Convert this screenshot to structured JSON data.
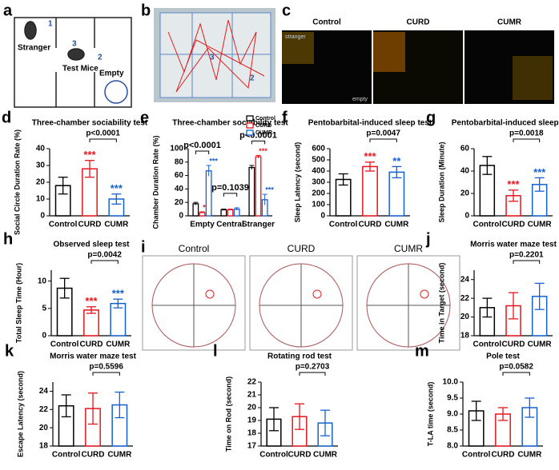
{
  "panels": {
    "a": {
      "label": "a",
      "stranger": "Stranger",
      "test_mice": "Test Mice",
      "empty": "Empty",
      "chamber_1": "1",
      "chamber_2": "2",
      "chamber_3": "3"
    },
    "b": {
      "label": "b",
      "chamber_3": "3",
      "chamber_2": "2"
    },
    "c": {
      "label": "c",
      "groups": [
        "Control",
        "CURD",
        "CUMR"
      ],
      "stranger": "stranger",
      "empty": "empty"
    },
    "i": {
      "label": "i",
      "groups": [
        "Control",
        "CURD",
        "CUMR"
      ]
    }
  },
  "chart_data": [
    {
      "type": "bar",
      "label": "d",
      "title": "Three-chamber sociability test",
      "y_label": "Social Circle Duration Rate (%)",
      "categories": [
        "Control",
        "CURD",
        "CUMR"
      ],
      "values": [
        18,
        28,
        10
      ],
      "errors": [
        5,
        5,
        3
      ],
      "colors": [
        "#000000",
        "#e8141c",
        "#1560d0"
      ],
      "stars": [
        null,
        "***",
        "***"
      ],
      "comparison": {
        "label": "p<0.0001",
        "from": 1,
        "to": 2
      },
      "ylim": [
        0,
        40
      ],
      "yticks": [
        0,
        10,
        20,
        30,
        40
      ]
    },
    {
      "type": "grouped_bar",
      "label": "e",
      "title": "Three-chamber sociability test",
      "y_label": "Chamber Duration Rate (%)",
      "categories": [
        "Empty",
        "Central",
        "Stranger"
      ],
      "series": [
        {
          "name": "Control",
          "color": "#000000",
          "values": [
            18,
            9,
            72
          ],
          "errors": [
            2,
            1,
            3
          ],
          "stars": [
            null,
            null,
            null
          ]
        },
        {
          "name": "CURD",
          "color": "#e8141c",
          "values": [
            5,
            9,
            88
          ],
          "errors": [
            1,
            1,
            2
          ],
          "stars": [
            "***",
            null,
            "***"
          ]
        },
        {
          "name": "CUMR",
          "color": "#1560d0",
          "values": [
            67,
            10,
            24
          ],
          "errors": [
            8,
            2,
            8
          ],
          "stars": [
            "***",
            null,
            "***"
          ]
        }
      ],
      "comparisons": [
        {
          "label": "p<0.0001",
          "category": 0
        },
        {
          "label": "p=0.1039",
          "category": 1
        },
        {
          "label": "p<0.0001",
          "category": 2
        }
      ],
      "legend": "upper right",
      "ylim": [
        0,
        100
      ],
      "yticks": [
        0,
        20,
        40,
        60,
        80,
        100
      ]
    },
    {
      "type": "bar",
      "label": "f",
      "title": "Pentobarbital-induced sleep test",
      "y_label": "Sleep Latency (second)",
      "categories": [
        "Control",
        "CURD",
        "CUMR"
      ],
      "values": [
        325,
        440,
        390
      ],
      "errors": [
        50,
        40,
        50
      ],
      "colors": [
        "#000000",
        "#e8141c",
        "#1560d0"
      ],
      "stars": [
        null,
        "***",
        "**"
      ],
      "comparison": {
        "label": "p=0.0047",
        "from": 1,
        "to": 2
      },
      "ylim": [
        0,
        600
      ],
      "yticks": [
        0,
        100,
        200,
        300,
        400,
        500,
        600
      ]
    },
    {
      "type": "bar",
      "label": "g",
      "title": "Pentobarbital-induced sleep test",
      "y_label": "Sleep Duration (Minute)",
      "categories": [
        "Control",
        "CURD",
        "CUMR"
      ],
      "values": [
        45,
        18,
        28
      ],
      "errors": [
        8,
        5,
        6
      ],
      "colors": [
        "#000000",
        "#e8141c",
        "#1560d0"
      ],
      "stars": [
        null,
        "***",
        "***"
      ],
      "comparison": {
        "label": "p=0.0018",
        "from": 1,
        "to": 2
      },
      "ylim": [
        0,
        60
      ],
      "yticks": [
        0,
        20,
        40,
        60
      ]
    },
    {
      "type": "bar",
      "label": "h",
      "title": "Observed sleep test",
      "y_label": "Total Sleep Time (Hour)",
      "categories": [
        "Control",
        "CURD",
        "CUMR"
      ],
      "values": [
        8.7,
        4.7,
        5.9
      ],
      "errors": [
        1.8,
        0.6,
        0.8
      ],
      "colors": [
        "#000000",
        "#e8141c",
        "#1560d0"
      ],
      "stars": [
        null,
        "***",
        "***"
      ],
      "comparison": {
        "label": "p=0.0042",
        "from": 1,
        "to": 2
      },
      "ylim": [
        0,
        12
      ],
      "yticks": [
        0,
        5,
        10
      ]
    },
    {
      "type": "bar",
      "label": "j",
      "title": "Morris water maze test",
      "y_label": "Time in Target (second)",
      "categories": [
        "Control",
        "CURD",
        "CUMR"
      ],
      "values": [
        21,
        21.2,
        22.2
      ],
      "errors": [
        1,
        1.4,
        1.4
      ],
      "colors": [
        "#000000",
        "#e8141c",
        "#1560d0"
      ],
      "stars": [
        null,
        null,
        null
      ],
      "comparison": {
        "label": "p=0.2201",
        "from": 1,
        "to": 2
      },
      "ylim": [
        18,
        25
      ],
      "yticks": [
        18,
        20,
        22,
        24
      ]
    },
    {
      "type": "bar",
      "label": "k",
      "title": "Morris water maze test",
      "y_label": "Escape Latency (second)",
      "categories": [
        "Control",
        "CURD",
        "CUMR"
      ],
      "values": [
        22.4,
        22.1,
        22.5
      ],
      "errors": [
        1.2,
        1.7,
        1.4
      ],
      "colors": [
        "#000000",
        "#e8141c",
        "#1560d0"
      ],
      "stars": [
        null,
        null,
        null
      ],
      "comparison": {
        "label": "p=0.5596",
        "from": 1,
        "to": 2
      },
      "ylim": [
        18,
        25
      ],
      "yticks": [
        18,
        20,
        22,
        24
      ]
    },
    {
      "type": "bar",
      "label": "l",
      "title": "Rotating rod test",
      "y_label": "Time on Rod (second)",
      "categories": [
        "Control",
        "CURD",
        "CUMR"
      ],
      "values": [
        19.1,
        19.3,
        18.8
      ],
      "errors": [
        0.9,
        1,
        1
      ],
      "colors": [
        "#000000",
        "#e8141c",
        "#1560d0"
      ],
      "stars": [
        null,
        null,
        null
      ],
      "comparison": {
        "label": "p=0.2703",
        "from": 1,
        "to": 2
      },
      "ylim": [
        17,
        22
      ],
      "yticks": [
        17,
        18,
        19,
        20,
        21,
        22
      ]
    },
    {
      "type": "bar",
      "label": "m",
      "title": "Pole test",
      "y_label": "T-LA time (second)",
      "categories": [
        "Control",
        "CURD",
        "CUMR"
      ],
      "values": [
        9.1,
        9.0,
        9.2
      ],
      "errors": [
        0.3,
        0.2,
        0.3
      ],
      "colors": [
        "#000000",
        "#e8141c",
        "#1560d0"
      ],
      "stars": [
        null,
        null,
        null
      ],
      "comparison": {
        "label": "p=0.0582",
        "from": 1,
        "to": 2
      },
      "ylim": [
        8,
        10
      ],
      "yticks": [
        {
          "value": 8,
          "label": "8.0"
        },
        {
          "value": 8.5,
          "label": "8.5"
        },
        {
          "value": 9,
          "label": "9.0"
        },
        {
          "value": 9.5,
          "label": "9.5"
        },
        {
          "value": 10,
          "label": "10.0"
        }
      ]
    }
  ]
}
